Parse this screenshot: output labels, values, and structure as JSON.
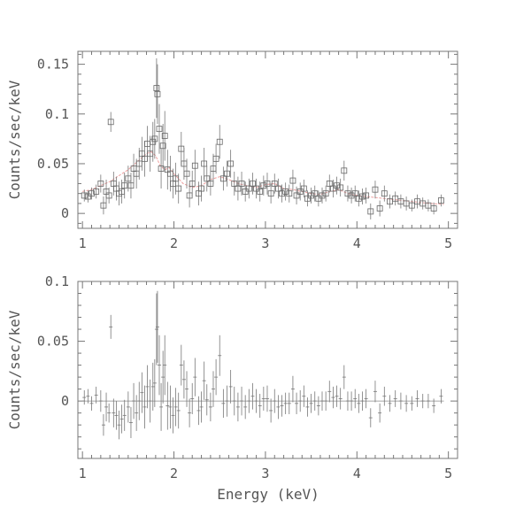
{
  "chart_data": [
    {
      "type": "scatter",
      "title": "",
      "xlabel": "",
      "ylabel": "Counts/sec/keV",
      "xlim": [
        0.95,
        5.1
      ],
      "ylim": [
        -0.015,
        0.163
      ],
      "x_ticks": [
        1,
        2,
        3,
        4,
        5
      ],
      "x_tick_labels": [
        "1",
        "2",
        "3",
        "4",
        "5"
      ],
      "y_ticks": [
        0,
        0.05,
        0.1,
        0.15
      ],
      "y_tick_labels": [
        "0",
        "0.05",
        "0.1",
        "0.15"
      ],
      "marker": "open-square",
      "colors": {
        "data": "#666666",
        "model": "#f0a0a0",
        "axes": "#777777"
      },
      "series": [
        {
          "x": [
            1.02,
            1.06,
            1.1,
            1.15,
            1.2,
            1.23,
            1.26,
            1.29,
            1.31,
            1.34,
            1.37,
            1.4,
            1.43,
            1.46,
            1.5,
            1.53,
            1.56,
            1.59,
            1.62,
            1.65,
            1.68,
            1.71,
            1.74,
            1.77,
            1.79,
            1.81,
            1.82,
            1.84,
            1.86,
            1.88,
            1.9,
            1.93,
            1.96,
            1.99,
            2.02,
            2.05,
            2.08,
            2.11,
            2.14,
            2.17,
            2.2,
            2.23,
            2.27,
            2.3,
            2.33,
            2.36,
            2.4,
            2.43,
            2.46,
            2.5,
            2.54,
            2.58,
            2.62,
            2.66,
            2.7,
            2.74,
            2.78,
            2.82,
            2.86,
            2.9,
            2.94,
            2.98,
            3.02,
            3.06,
            3.1,
            3.14,
            3.18,
            3.22,
            3.26,
            3.3,
            3.34,
            3.38,
            3.42,
            3.46,
            3.5,
            3.54,
            3.58,
            3.62,
            3.66,
            3.7,
            3.74,
            3.78,
            3.82,
            3.86,
            3.9,
            3.94,
            3.98,
            4.02,
            4.06,
            4.1,
            4.15,
            4.2,
            4.25,
            4.3,
            4.36,
            4.42,
            4.48,
            4.54,
            4.6,
            4.66,
            4.72,
            4.78,
            4.84,
            4.92
          ],
          "y": [
            0.018,
            0.017,
            0.02,
            0.022,
            0.03,
            0.008,
            0.022,
            0.018,
            0.092,
            0.03,
            0.025,
            0.02,
            0.022,
            0.028,
            0.035,
            0.028,
            0.045,
            0.04,
            0.05,
            0.06,
            0.055,
            0.07,
            0.06,
            0.072,
            0.075,
            0.126,
            0.12,
            0.085,
            0.045,
            0.068,
            0.078,
            0.044,
            0.04,
            0.03,
            0.035,
            0.025,
            0.065,
            0.05,
            0.04,
            0.018,
            0.03,
            0.048,
            0.02,
            0.025,
            0.05,
            0.035,
            0.03,
            0.045,
            0.055,
            0.072,
            0.035,
            0.04,
            0.05,
            0.03,
            0.025,
            0.03,
            0.022,
            0.025,
            0.03,
            0.025,
            0.022,
            0.028,
            0.03,
            0.02,
            0.03,
            0.025,
            0.02,
            0.022,
            0.02,
            0.033,
            0.018,
            0.022,
            0.025,
            0.015,
            0.018,
            0.02,
            0.015,
            0.018,
            0.02,
            0.03,
            0.025,
            0.028,
            0.026,
            0.043,
            0.02,
            0.018,
            0.02,
            0.015,
            0.017,
            0.018,
            0.002,
            0.024,
            0.005,
            0.02,
            0.012,
            0.015,
            0.012,
            0.01,
            0.008,
            0.012,
            0.01,
            0.008,
            0.005,
            0.013
          ],
          "yerr": [
            0.006,
            0.006,
            0.006,
            0.007,
            0.009,
            0.009,
            0.012,
            0.008,
            0.01,
            0.012,
            0.012,
            0.012,
            0.012,
            0.013,
            0.013,
            0.013,
            0.015,
            0.015,
            0.016,
            0.017,
            0.018,
            0.018,
            0.018,
            0.02,
            0.02,
            0.03,
            0.03,
            0.025,
            0.02,
            0.022,
            0.025,
            0.02,
            0.018,
            0.015,
            0.016,
            0.015,
            0.017,
            0.016,
            0.015,
            0.012,
            0.013,
            0.016,
            0.012,
            0.013,
            0.016,
            0.013,
            0.012,
            0.015,
            0.015,
            0.017,
            0.012,
            0.013,
            0.014,
            0.012,
            0.012,
            0.012,
            0.01,
            0.01,
            0.011,
            0.01,
            0.01,
            0.01,
            0.011,
            0.01,
            0.01,
            0.01,
            0.009,
            0.009,
            0.009,
            0.011,
            0.009,
            0.009,
            0.009,
            0.008,
            0.008,
            0.008,
            0.008,
            0.008,
            0.008,
            0.009,
            0.009,
            0.009,
            0.009,
            0.01,
            0.008,
            0.008,
            0.008,
            0.008,
            0.008,
            0.008,
            0.008,
            0.009,
            0.008,
            0.008,
            0.007,
            0.007,
            0.007,
            0.007,
            0.006,
            0.007,
            0.006,
            0.006,
            0.006,
            0.006
          ]
        },
        {
          "type": "line",
          "x": [
            1.0,
            1.1,
            1.2,
            1.3,
            1.4,
            1.5,
            1.6,
            1.65,
            1.7,
            1.75,
            1.8,
            1.85,
            1.9,
            1.95,
            2.0,
            2.1,
            2.2,
            2.3,
            2.4,
            2.5,
            2.6,
            2.7,
            2.8,
            2.9,
            3.0,
            3.1,
            3.2,
            3.3,
            3.4,
            3.5,
            3.6,
            3.7,
            3.8,
            3.9,
            4.0,
            4.2,
            4.4,
            4.6,
            4.8,
            4.95
          ],
          "y": [
            0.022,
            0.024,
            0.028,
            0.032,
            0.038,
            0.044,
            0.052,
            0.056,
            0.06,
            0.062,
            0.058,
            0.048,
            0.044,
            0.046,
            0.04,
            0.03,
            0.026,
            0.028,
            0.034,
            0.037,
            0.034,
            0.03,
            0.028,
            0.026,
            0.029,
            0.03,
            0.025,
            0.024,
            0.022,
            0.02,
            0.019,
            0.022,
            0.024,
            0.02,
            0.018,
            0.016,
            0.014,
            0.012,
            0.01,
            0.009
          ]
        }
      ]
    },
    {
      "type": "scatter",
      "title": "",
      "xlabel": "Energy (keV)",
      "ylabel": "Counts/sec/keV",
      "xlim": [
        0.95,
        5.1
      ],
      "ylim": [
        -0.048,
        0.1
      ],
      "x_ticks": [
        1,
        2,
        3,
        4,
        5
      ],
      "x_tick_labels": [
        "1",
        "2",
        "3",
        "4",
        "5"
      ],
      "y_ticks": [
        0,
        0.05,
        0.1
      ],
      "y_tick_labels": [
        "0",
        "0.05",
        "0.1"
      ],
      "marker": "cross",
      "reference_line": 0,
      "series": [
        {
          "x": [
            1.02,
            1.06,
            1.1,
            1.15,
            1.2,
            1.23,
            1.26,
            1.29,
            1.31,
            1.34,
            1.37,
            1.4,
            1.43,
            1.46,
            1.5,
            1.53,
            1.56,
            1.59,
            1.62,
            1.65,
            1.68,
            1.71,
            1.74,
            1.77,
            1.79,
            1.81,
            1.82,
            1.84,
            1.86,
            1.88,
            1.9,
            1.93,
            1.96,
            1.99,
            2.02,
            2.05,
            2.08,
            2.11,
            2.14,
            2.17,
            2.2,
            2.23,
            2.27,
            2.3,
            2.33,
            2.36,
            2.4,
            2.43,
            2.46,
            2.5,
            2.54,
            2.58,
            2.62,
            2.66,
            2.7,
            2.74,
            2.78,
            2.82,
            2.86,
            2.9,
            2.94,
            2.98,
            3.02,
            3.06,
            3.1,
            3.14,
            3.18,
            3.22,
            3.26,
            3.3,
            3.34,
            3.38,
            3.42,
            3.46,
            3.5,
            3.54,
            3.58,
            3.62,
            3.66,
            3.7,
            3.74,
            3.78,
            3.82,
            3.86,
            3.9,
            3.94,
            3.98,
            4.02,
            4.06,
            4.1,
            4.15,
            4.2,
            4.25,
            4.3,
            4.36,
            4.42,
            4.48,
            4.54,
            4.6,
            4.66,
            4.72,
            4.78,
            4.84,
            4.92
          ],
          "y": [
            0.003,
            0.004,
            -0.002,
            0.005,
            0.0,
            -0.02,
            -0.005,
            -0.01,
            0.062,
            -0.01,
            -0.012,
            -0.02,
            -0.015,
            -0.012,
            -0.005,
            -0.018,
            0.0,
            -0.01,
            0.0,
            0.007,
            -0.005,
            0.012,
            0.0,
            0.012,
            0.015,
            0.06,
            0.062,
            0.03,
            -0.005,
            0.02,
            0.03,
            -0.004,
            -0.005,
            -0.012,
            -0.005,
            -0.008,
            0.03,
            0.018,
            0.01,
            -0.01,
            0.002,
            0.02,
            -0.008,
            -0.005,
            0.017,
            0.001,
            -0.005,
            0.01,
            0.02,
            0.038,
            -0.002,
            0.0,
            0.012,
            0.0,
            -0.005,
            0.0,
            -0.005,
            0.0,
            0.004,
            0.0,
            -0.004,
            0.002,
            0.002,
            -0.008,
            0.0,
            -0.005,
            -0.004,
            -0.002,
            -0.002,
            0.01,
            -0.002,
            0.0,
            0.004,
            -0.005,
            -0.002,
            0.0,
            -0.004,
            0.0,
            0.0,
            0.008,
            0.003,
            0.004,
            0.002,
            0.02,
            0.0,
            0.0,
            0.002,
            -0.002,
            0.0,
            0.002,
            -0.014,
            0.008,
            -0.01,
            0.004,
            -0.002,
            0.002,
            0.0,
            -0.002,
            -0.002,
            0.002,
            0.0,
            0.0,
            -0.004,
            0.004
          ],
          "yerr": [
            0.006,
            0.006,
            0.006,
            0.007,
            0.009,
            0.009,
            0.012,
            0.008,
            0.01,
            0.012,
            0.012,
            0.012,
            0.012,
            0.013,
            0.013,
            0.013,
            0.015,
            0.015,
            0.016,
            0.017,
            0.018,
            0.018,
            0.018,
            0.02,
            0.02,
            0.03,
            0.03,
            0.025,
            0.02,
            0.022,
            0.025,
            0.02,
            0.018,
            0.015,
            0.016,
            0.015,
            0.017,
            0.016,
            0.015,
            0.012,
            0.013,
            0.016,
            0.012,
            0.013,
            0.016,
            0.013,
            0.012,
            0.015,
            0.015,
            0.017,
            0.012,
            0.013,
            0.014,
            0.012,
            0.012,
            0.012,
            0.01,
            0.01,
            0.011,
            0.01,
            0.01,
            0.01,
            0.011,
            0.01,
            0.01,
            0.01,
            0.009,
            0.009,
            0.009,
            0.011,
            0.009,
            0.009,
            0.009,
            0.008,
            0.008,
            0.008,
            0.008,
            0.008,
            0.008,
            0.009,
            0.009,
            0.009,
            0.009,
            0.01,
            0.008,
            0.008,
            0.008,
            0.008,
            0.008,
            0.008,
            0.008,
            0.009,
            0.008,
            0.008,
            0.007,
            0.007,
            0.007,
            0.007,
            0.006,
            0.007,
            0.006,
            0.006,
            0.006,
            0.006
          ]
        }
      ]
    }
  ]
}
